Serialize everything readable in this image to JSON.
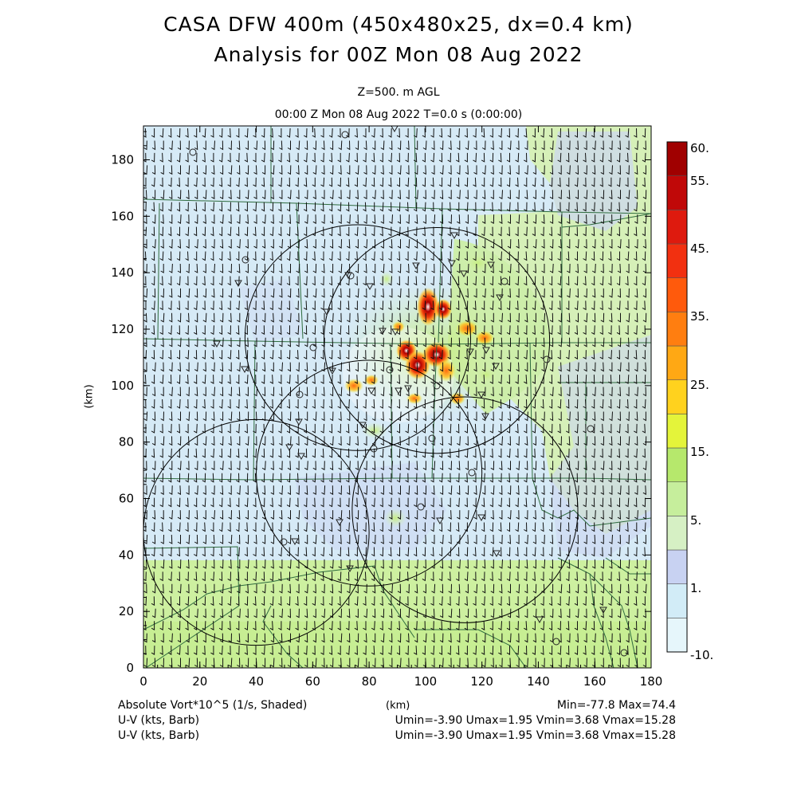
{
  "title": {
    "line1": "CASA DFW 400m (450x480x25, dx=0.4 km)",
    "line2": "Analysis for 00Z Mon 08 Aug 2022"
  },
  "subtitle": {
    "level": "Z=500. m AGL",
    "time": "00:00 Z Mon 08 Aug 2022   T=0.0 s (0:00:00)"
  },
  "axes": {
    "xlabel": "(km)",
    "ylabel": "(km)",
    "xrange": [
      0,
      180
    ],
    "yrange": [
      0,
      192
    ],
    "xticks": [
      0,
      20,
      40,
      60,
      80,
      100,
      120,
      140,
      160,
      180
    ],
    "yticks": [
      0,
      20,
      40,
      60,
      80,
      100,
      120,
      140,
      160,
      180
    ]
  },
  "colorbar": {
    "labels": [
      "60.",
      "55.",
      "45.",
      "35.",
      "25.",
      "15.",
      "5.",
      "1.",
      "-10."
    ],
    "colors_bottom_to_top": [
      "#e6f6fb",
      "#d2ecf7",
      "#c8d2f2",
      "#d6f0c4",
      "#c6ee9c",
      "#b6e86c",
      "#e4f43a",
      "#ffd21e",
      "#ffa814",
      "#ff7e10",
      "#ff5a0c",
      "#f23010",
      "#de1a0e",
      "#c00808",
      "#a00000"
    ]
  },
  "footer": {
    "field": "Absolute Vort*10^5 (1/s, Shaded)",
    "xunit": "(km)",
    "minmax": "Min=-77.8 Max=74.4",
    "uv1_label": "U-V (kts, Barb)",
    "uv1_stats": "Umin=-3.90 Umax=1.95 Vmin=3.68 Vmax=15.28",
    "uv2_label": "U-V (kts, Barb)",
    "uv2_stats": "Umin=-3.90 Umax=1.95 Vmin=3.68 Vmax=15.28"
  },
  "colors": {
    "background_field": "#d6eaf6",
    "southern_field": "#cdf0a0",
    "northeast_field": "#d6f0b8",
    "county_lines": "#2e6b3e",
    "barbs": "#111111",
    "range_rings": "#000000"
  },
  "map_data": {
    "radar_ring_centers_km": [
      [
        76,
        117
      ],
      [
        80,
        69
      ],
      [
        104,
        116
      ],
      [
        114,
        56
      ],
      [
        40,
        48
      ]
    ],
    "radar_ring_radius_km": 40
  }
}
